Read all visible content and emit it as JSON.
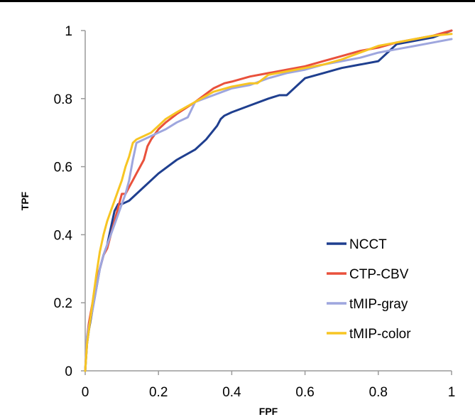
{
  "chart_data": {
    "type": "line",
    "title": "",
    "xlabel": "FPF",
    "ylabel": "TPF",
    "xlim": [
      0,
      1
    ],
    "ylim": [
      0,
      1
    ],
    "x_ticks": [
      "0",
      "0.2",
      "0.4",
      "0.6",
      "0.8",
      "1"
    ],
    "y_ticks": [
      "0",
      "0.2",
      "0.4",
      "0.6",
      "0.8",
      "1"
    ],
    "grid": false,
    "legend_position": "bottom-right",
    "series": [
      {
        "name": "NCCT",
        "color": "#1f3f8f",
        "points": [
          [
            0,
            0
          ],
          [
            0.005,
            0.08
          ],
          [
            0.01,
            0.12
          ],
          [
            0.02,
            0.18
          ],
          [
            0.03,
            0.24
          ],
          [
            0.04,
            0.3
          ],
          [
            0.05,
            0.34
          ],
          [
            0.06,
            0.37
          ],
          [
            0.07,
            0.42
          ],
          [
            0.08,
            0.47
          ],
          [
            0.09,
            0.49
          ],
          [
            0.1,
            0.49
          ],
          [
            0.12,
            0.5
          ],
          [
            0.15,
            0.53
          ],
          [
            0.2,
            0.58
          ],
          [
            0.25,
            0.62
          ],
          [
            0.3,
            0.65
          ],
          [
            0.33,
            0.68
          ],
          [
            0.36,
            0.72
          ],
          [
            0.37,
            0.74
          ],
          [
            0.38,
            0.75
          ],
          [
            0.4,
            0.76
          ],
          [
            0.45,
            0.78
          ],
          [
            0.5,
            0.8
          ],
          [
            0.53,
            0.81
          ],
          [
            0.55,
            0.81
          ],
          [
            0.6,
            0.86
          ],
          [
            0.65,
            0.875
          ],
          [
            0.7,
            0.89
          ],
          [
            0.75,
            0.9
          ],
          [
            0.8,
            0.91
          ],
          [
            0.85,
            0.96
          ],
          [
            0.9,
            0.97
          ],
          [
            0.95,
            0.98
          ],
          [
            1,
            1
          ]
        ]
      },
      {
        "name": "CTP-CBV",
        "color": "#e9513c",
        "points": [
          [
            0,
            0
          ],
          [
            0.005,
            0.1
          ],
          [
            0.01,
            0.14
          ],
          [
            0.02,
            0.2
          ],
          [
            0.03,
            0.27
          ],
          [
            0.04,
            0.3
          ],
          [
            0.05,
            0.34
          ],
          [
            0.06,
            0.36
          ],
          [
            0.07,
            0.4
          ],
          [
            0.08,
            0.44
          ],
          [
            0.09,
            0.48
          ],
          [
            0.1,
            0.52
          ],
          [
            0.11,
            0.52
          ],
          [
            0.12,
            0.54
          ],
          [
            0.13,
            0.56
          ],
          [
            0.14,
            0.58
          ],
          [
            0.15,
            0.6
          ],
          [
            0.16,
            0.62
          ],
          [
            0.17,
            0.66
          ],
          [
            0.18,
            0.68
          ],
          [
            0.2,
            0.71
          ],
          [
            0.22,
            0.73
          ],
          [
            0.25,
            0.755
          ],
          [
            0.3,
            0.79
          ],
          [
            0.35,
            0.83
          ],
          [
            0.38,
            0.845
          ],
          [
            0.4,
            0.85
          ],
          [
            0.45,
            0.865
          ],
          [
            0.5,
            0.875
          ],
          [
            0.55,
            0.885
          ],
          [
            0.6,
            0.895
          ],
          [
            0.65,
            0.91
          ],
          [
            0.7,
            0.925
          ],
          [
            0.75,
            0.94
          ],
          [
            0.8,
            0.95
          ],
          [
            0.85,
            0.965
          ],
          [
            0.9,
            0.975
          ],
          [
            0.95,
            0.985
          ],
          [
            1,
            1
          ]
        ]
      },
      {
        "name": "tMIP-gray",
        "color": "#9ea6de",
        "points": [
          [
            0,
            0
          ],
          [
            0.005,
            0.1
          ],
          [
            0.01,
            0.13
          ],
          [
            0.02,
            0.18
          ],
          [
            0.03,
            0.24
          ],
          [
            0.04,
            0.3
          ],
          [
            0.05,
            0.34
          ],
          [
            0.06,
            0.37
          ],
          [
            0.07,
            0.4
          ],
          [
            0.08,
            0.43
          ],
          [
            0.09,
            0.46
          ],
          [
            0.1,
            0.49
          ],
          [
            0.11,
            0.52
          ],
          [
            0.12,
            0.56
          ],
          [
            0.13,
            0.62
          ],
          [
            0.14,
            0.67
          ],
          [
            0.16,
            0.68
          ],
          [
            0.18,
            0.69
          ],
          [
            0.2,
            0.7
          ],
          [
            0.22,
            0.71
          ],
          [
            0.25,
            0.73
          ],
          [
            0.28,
            0.745
          ],
          [
            0.3,
            0.79
          ],
          [
            0.35,
            0.81
          ],
          [
            0.4,
            0.83
          ],
          [
            0.45,
            0.84
          ],
          [
            0.5,
            0.86
          ],
          [
            0.55,
            0.875
          ],
          [
            0.6,
            0.885
          ],
          [
            0.65,
            0.9
          ],
          [
            0.7,
            0.91
          ],
          [
            0.75,
            0.92
          ],
          [
            0.8,
            0.935
          ],
          [
            0.85,
            0.945
          ],
          [
            0.9,
            0.955
          ],
          [
            0.95,
            0.965
          ],
          [
            1,
            0.975
          ]
        ]
      },
      {
        "name": "tMIP-color",
        "color": "#f7c523",
        "points": [
          [
            0,
            0
          ],
          [
            0.005,
            0.08
          ],
          [
            0.01,
            0.12
          ],
          [
            0.02,
            0.2
          ],
          [
            0.03,
            0.28
          ],
          [
            0.04,
            0.35
          ],
          [
            0.05,
            0.4
          ],
          [
            0.06,
            0.44
          ],
          [
            0.07,
            0.47
          ],
          [
            0.08,
            0.5
          ],
          [
            0.09,
            0.53
          ],
          [
            0.1,
            0.56
          ],
          [
            0.11,
            0.6
          ],
          [
            0.12,
            0.63
          ],
          [
            0.13,
            0.67
          ],
          [
            0.14,
            0.68
          ],
          [
            0.16,
            0.69
          ],
          [
            0.18,
            0.7
          ],
          [
            0.2,
            0.72
          ],
          [
            0.22,
            0.74
          ],
          [
            0.25,
            0.76
          ],
          [
            0.3,
            0.79
          ],
          [
            0.35,
            0.82
          ],
          [
            0.4,
            0.835
          ],
          [
            0.45,
            0.845
          ],
          [
            0.47,
            0.845
          ],
          [
            0.5,
            0.87
          ],
          [
            0.55,
            0.88
          ],
          [
            0.6,
            0.89
          ],
          [
            0.65,
            0.9
          ],
          [
            0.7,
            0.915
          ],
          [
            0.75,
            0.935
          ],
          [
            0.8,
            0.955
          ],
          [
            0.85,
            0.965
          ],
          [
            0.9,
            0.975
          ],
          [
            0.95,
            0.985
          ],
          [
            1,
            0.99
          ]
        ]
      }
    ]
  },
  "colors": {
    "axis": "#9a9a9a",
    "text": "#000000"
  }
}
